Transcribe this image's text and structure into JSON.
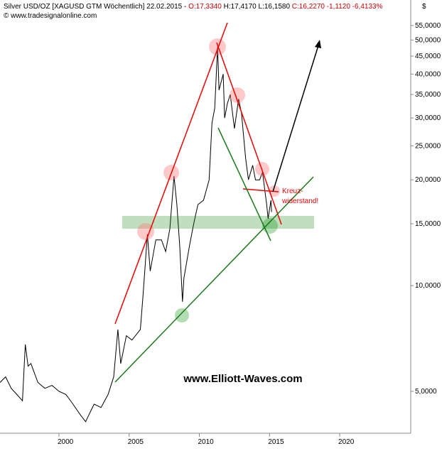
{
  "chart_data": {
    "type": "line",
    "header_parts": [
      {
        "text": "Silver USD/OZ [XAGUSD GTM  Wöchentlich] 22.02.2015 - ",
        "color": "#000000"
      },
      {
        "text": "O:17,3340",
        "color": "#d00000"
      },
      {
        "text": " H:17,4170 L:16,1580 ",
        "color": "#000000"
      },
      {
        "text": "C:16,2270 -1,1120 -6,4133%",
        "color": "#d00000"
      }
    ],
    "source": "© www.tradesignalonline.com",
    "currency": "$",
    "watermark": "www.Elliott-Waves.com",
    "annotation_lines": [
      "Kreuz-",
      "widerstand!"
    ],
    "log_scale": true,
    "xlim": [
      1995.8,
      2025.06
    ],
    "xticks": [
      2000,
      2005,
      2010,
      2015,
      2020
    ],
    "ylim": [
      3.8,
      65
    ],
    "yticks": [
      {
        "value": 5,
        "label": "5,0000"
      },
      {
        "value": 10,
        "label": "10,0000"
      },
      {
        "value": 15,
        "label": "15,0000"
      },
      {
        "value": 20,
        "label": "20,0000"
      },
      {
        "value": 25,
        "label": "25,0000"
      },
      {
        "value": 30,
        "label": "30,0000"
      },
      {
        "value": 35,
        "label": "35,0000"
      },
      {
        "value": 40,
        "label": "40,0000"
      },
      {
        "value": 45,
        "label": "45,0000"
      },
      {
        "value": 50,
        "label": "50,0000"
      },
      {
        "value": 55,
        "label": "55,0000"
      }
    ],
    "series": [
      {
        "color": "#000000",
        "x": [
          1995.8,
          1996.2,
          1996.6,
          1997.0,
          1997.4,
          1997.6,
          1997.8,
          1998.0,
          1998.5,
          1999.0,
          1999.5,
          2000.0,
          2000.5,
          2001.0,
          2001.5,
          2001.9,
          2002.5,
          2003.0,
          2003.5,
          2003.9,
          2004.2,
          2004.4,
          2004.8,
          2005.2,
          2005.8,
          2006.0,
          2006.3,
          2006.5,
          2006.9,
          2007.3,
          2007.6,
          2007.9,
          2008.2,
          2008.4,
          2008.6,
          2008.8,
          2008.9,
          2009.3,
          2009.6,
          2009.9,
          2010.3,
          2010.7,
          2010.9,
          2011.1,
          2011.3,
          2011.4,
          2011.7,
          2011.8,
          2012.0,
          2012.2,
          2012.5,
          2012.8,
          2013.0,
          2013.3,
          2013.5,
          2013.8,
          2014.0,
          2014.3,
          2014.5,
          2014.8,
          2014.9,
          2015.1,
          2015.15
        ],
        "values": [
          5.3,
          5.5,
          5.1,
          4.9,
          4.7,
          6.8,
          5.9,
          6.0,
          5.3,
          5.1,
          5.2,
          5.0,
          4.9,
          4.6,
          4.3,
          4.1,
          4.6,
          4.5,
          4.9,
          5.5,
          7.5,
          6.0,
          7.2,
          7.0,
          7.5,
          9.5,
          14.0,
          11.0,
          13.5,
          13.5,
          12.5,
          14.5,
          20.5,
          17.0,
          13.0,
          9.0,
          10.5,
          13.0,
          15.0,
          17.0,
          17.5,
          20.0,
          29.0,
          32.0,
          48.0,
          36.0,
          40.0,
          30.0,
          33.0,
          35.0,
          28.0,
          34.0,
          31.0,
          23.0,
          20.0,
          22.0,
          20.0,
          20.0,
          21.0,
          17.0,
          15.5,
          17.5,
          16.2
        ]
      }
    ]
  }
}
